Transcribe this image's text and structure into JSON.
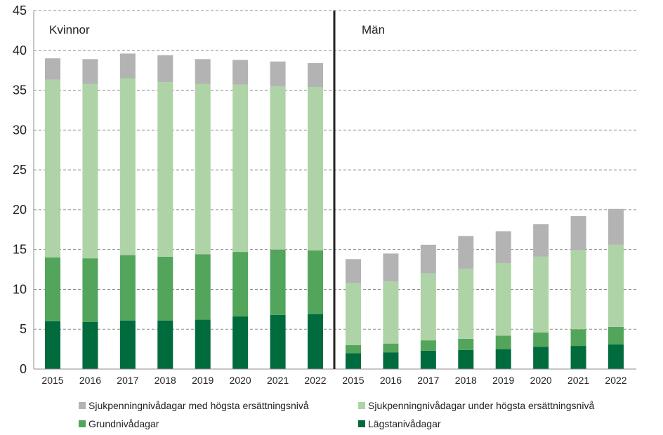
{
  "chart_data": {
    "type": "bar",
    "stacked": true,
    "groups": [
      {
        "label": "Kvinnor",
        "categories": [
          "2015",
          "2016",
          "2017",
          "2018",
          "2019",
          "2020",
          "2021",
          "2022"
        ]
      },
      {
        "label": "Män",
        "categories": [
          "2015",
          "2016",
          "2017",
          "2018",
          "2019",
          "2020",
          "2021",
          "2022"
        ]
      }
    ],
    "series": [
      {
        "name": "Lägstanivådagar",
        "color": "#006b3c",
        "values": [
          6.0,
          5.9,
          6.1,
          6.1,
          6.2,
          6.6,
          6.8,
          6.9,
          2.0,
          2.1,
          2.3,
          2.4,
          2.5,
          2.8,
          2.9,
          3.1
        ]
      },
      {
        "name": "Grundnivådagar",
        "color": "#52a55b",
        "values": [
          8.0,
          8.0,
          8.2,
          8.0,
          8.2,
          8.1,
          8.2,
          8.0,
          1.0,
          1.1,
          1.3,
          1.4,
          1.7,
          1.8,
          2.1,
          2.2
        ]
      },
      {
        "name": "Sjukpenningnivådagar under högsta ersättningsnivå",
        "color": "#aed3a6",
        "values": [
          22.3,
          21.9,
          22.2,
          21.9,
          21.4,
          21.0,
          20.5,
          20.5,
          7.8,
          7.8,
          8.4,
          8.8,
          9.1,
          9.5,
          9.9,
          10.3
        ]
      },
      {
        "name": "Sjukpenningnivådagar med högsta ersättningsnivå",
        "color": "#b3b3b3",
        "values": [
          2.7,
          3.1,
          3.1,
          3.4,
          3.1,
          3.1,
          3.1,
          3.0,
          3.0,
          3.5,
          3.6,
          4.1,
          4.0,
          4.1,
          4.3,
          4.5
        ]
      }
    ],
    "ylim": [
      0,
      45
    ],
    "yticks": [
      "0",
      "5",
      "10",
      "15",
      "20",
      "25",
      "30",
      "35",
      "40",
      "45"
    ],
    "grid": "horizontal dashed",
    "legend_position": "bottom"
  }
}
